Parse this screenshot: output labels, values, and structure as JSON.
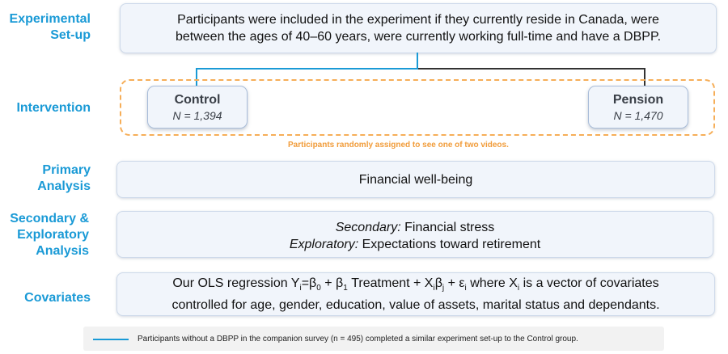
{
  "labels": {
    "experimental_setup": [
      "Experimental",
      "Set-up"
    ],
    "intervention": "Intervention",
    "primary_analysis": [
      "Primary",
      "Analysis"
    ],
    "secondary_analysis": [
      "Secondary &",
      "Exploratory",
      "Analysis"
    ],
    "covariates": "Covariates"
  },
  "setup_box": {
    "line1": "Participants were included in the experiment if they currently reside in Canada, were",
    "line2": "between the ages of 40–60 years, were currently working full-time and have a DBPP."
  },
  "arms": {
    "control": {
      "title": "Control",
      "n": "N = 1,394"
    },
    "pension": {
      "title": "Pension",
      "n": "N = 1,470"
    }
  },
  "randomization_note": "Participants randomly assigned to see one of two videos.",
  "primary_box": "Financial well-being",
  "secondary_box": {
    "secondary_label": "Secondary:",
    "secondary_text": " Financial stress",
    "exploratory_label": "Exploratory:",
    "exploratory_text": " Expectations toward retirement"
  },
  "covariates_box": {
    "pre": "Our OLS regression Y",
    "line2": "controlled for age, gender, education, value of assets, marital status and dependants."
  },
  "footer": {
    "text": "Participants without a DBPP in the companion survey (n = 495) completed a similar experiment set-up to the Control group."
  },
  "colors": {
    "accent_blue": "#1a9ad6",
    "orange": "#f6ae58",
    "box_bg": "#f1f5fb"
  }
}
